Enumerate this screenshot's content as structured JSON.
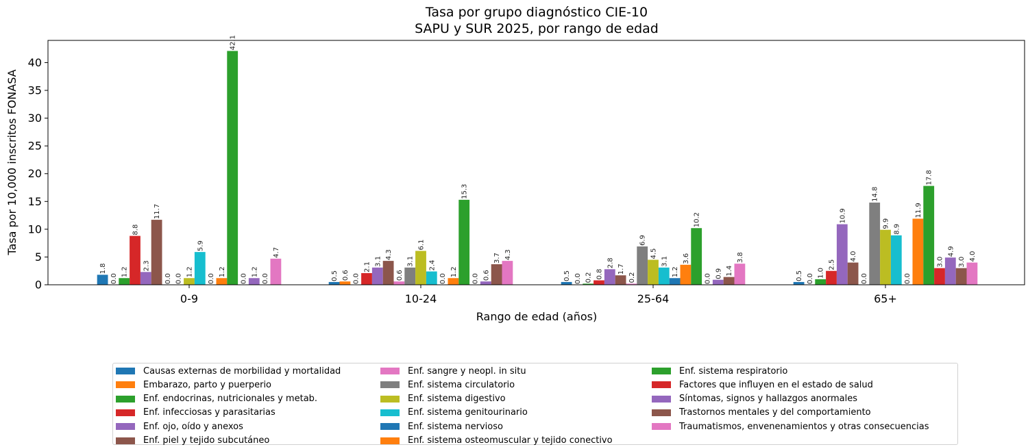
{
  "chart_data": {
    "type": "bar",
    "title": "Tasa por grupo diagnóstico CIE-10",
    "subtitle": "SAPU y SUR 2025, por rango de edad",
    "xlabel": "Rango de edad (años)",
    "ylabel": "Tasa por 10,000 inscritos FONASA",
    "categories": [
      "0-9",
      "10-24",
      "25-64",
      "65+"
    ],
    "ylim": [
      0,
      44
    ],
    "yticks": [
      0,
      5,
      10,
      15,
      20,
      25,
      30,
      35,
      40
    ],
    "grid": false,
    "legend_position": "bottom",
    "series": [
      {
        "name": "Causas externas de morbilidad y mortalidad",
        "color": "#1f77b4",
        "values": [
          1.8,
          0.5,
          0.5,
          0.5
        ]
      },
      {
        "name": "Embarazo, parto y puerperio",
        "color": "#ff7f0e",
        "values": [
          0.0,
          0.6,
          0.0,
          0.0
        ]
      },
      {
        "name": "Enf. endocrinas, nutricionales y metab.",
        "color": "#2ca02c",
        "values": [
          1.2,
          0.0,
          0.2,
          1.0
        ]
      },
      {
        "name": "Enf. infecciosas y parasitarias",
        "color": "#d62728",
        "values": [
          8.8,
          2.1,
          0.8,
          2.5
        ]
      },
      {
        "name": "Enf. ojo, oído y anexos",
        "color": "#9467bd",
        "values": [
          2.3,
          3.1,
          2.8,
          10.9
        ]
      },
      {
        "name": "Enf. piel y tejido subcutáneo",
        "color": "#8c564b",
        "values": [
          11.7,
          4.3,
          1.7,
          4.0
        ]
      },
      {
        "name": "Enf. sangre y neopl. in situ",
        "color": "#e377c2",
        "values": [
          0.0,
          0.6,
          0.2,
          0.0
        ]
      },
      {
        "name": "Enf. sistema circulatorio",
        "color": "#7f7f7f",
        "values": [
          0.0,
          3.1,
          6.9,
          14.8
        ]
      },
      {
        "name": "Enf. sistema digestivo",
        "color": "#bcbd22",
        "values": [
          1.2,
          6.1,
          4.5,
          9.9
        ]
      },
      {
        "name": "Enf. sistema genitourinario",
        "color": "#17becf",
        "values": [
          5.9,
          2.4,
          3.1,
          8.9
        ]
      },
      {
        "name": "Enf. sistema nervioso",
        "color": "#1f77b4",
        "values": [
          0.0,
          0.0,
          1.2,
          0.0
        ]
      },
      {
        "name": "Enf. sistema osteomuscular y tejido conectivo",
        "color": "#ff7f0e",
        "values": [
          1.2,
          1.2,
          3.6,
          11.9
        ]
      },
      {
        "name": "Enf. sistema respiratorio",
        "color": "#2ca02c",
        "values": [
          42.1,
          15.3,
          10.2,
          17.8
        ]
      },
      {
        "name": "Factores que influyen en el estado de salud",
        "color": "#d62728",
        "values": [
          0.0,
          0.0,
          0.0,
          3.0
        ]
      },
      {
        "name": "Síntomas, signos y hallazgos anormales",
        "color": "#9467bd",
        "values": [
          1.2,
          0.6,
          0.9,
          4.9
        ]
      },
      {
        "name": "Trastornos mentales y del comportamiento",
        "color": "#8c564b",
        "values": [
          0.0,
          3.7,
          1.4,
          3.0
        ]
      },
      {
        "name": "Traumatismos, envenenamientos y otras consecuencias",
        "color": "#e377c2",
        "values": [
          4.7,
          4.3,
          3.8,
          4.0
        ]
      }
    ]
  }
}
